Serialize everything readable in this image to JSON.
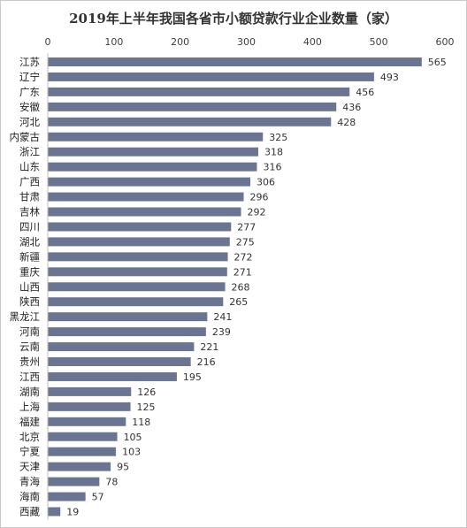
{
  "chart_data": {
    "type": "bar",
    "orientation": "horizontal",
    "title": "2019年上半年我国各省市小额贷款行业企业数量（家）",
    "xlabel": "",
    "ylabel": "",
    "xlim": [
      0,
      600
    ],
    "x_ticks": [
      "0",
      "100",
      "200",
      "300",
      "400",
      "500",
      "600"
    ],
    "x_axis_position": "top",
    "grid": false,
    "legend": "none",
    "bar_color": "#6b7592",
    "categories": [
      "江苏",
      "辽宁",
      "广东",
      "安徽",
      "河北",
      "内蒙古",
      "浙江",
      "山东",
      "广西",
      "甘肃",
      "吉林",
      "四川",
      "湖北",
      "新疆",
      "重庆",
      "山西",
      "陕西",
      "黑龙江",
      "河南",
      "云南",
      "贵州",
      "江西",
      "湖南",
      "上海",
      "福建",
      "北京",
      "宁夏",
      "天津",
      "青海",
      "海南",
      "西藏"
    ],
    "values": [
      565,
      493,
      456,
      436,
      428,
      325,
      318,
      316,
      306,
      296,
      292,
      277,
      275,
      272,
      271,
      268,
      265,
      241,
      239,
      221,
      216,
      195,
      126,
      125,
      118,
      105,
      103,
      95,
      78,
      57,
      19
    ],
    "value_labels": [
      "565",
      "493",
      "456",
      "436",
      "428",
      "325",
      "318",
      "316",
      "306",
      "296",
      "292",
      "277",
      "275",
      "272",
      "271",
      "268",
      "265",
      "241",
      "239",
      "221",
      "216",
      "195",
      "126",
      "125",
      "118",
      "105",
      "103",
      "95",
      "78",
      "57",
      "19"
    ]
  }
}
